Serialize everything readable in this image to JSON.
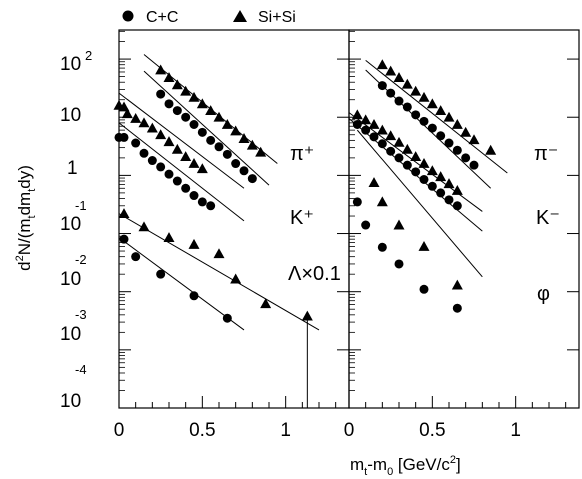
{
  "chart_data": [
    {
      "type": "scatter",
      "panel": "left",
      "xlim": [
        0,
        1.38
      ],
      "ylog": true,
      "ylim": [
        0.0001,
        300
      ],
      "xticks": [
        "0",
        "0.5",
        "1"
      ],
      "ylabel": "d²N/(m_t dm_t dy)",
      "particle_labels": [
        "π⁺",
        "K⁺",
        "Λ×0.1"
      ],
      "series": [
        {
          "name": "C+C",
          "particle": "π⁺",
          "marker": "circle",
          "x": [
            0.0,
            0.03,
            0.1,
            0.15,
            0.2,
            0.25,
            0.3,
            0.35,
            0.4,
            0.45,
            0.5,
            0.55
          ],
          "y": [
            4.5,
            4.5,
            3.6,
            2.4,
            1.8,
            1.4,
            1.05,
            0.8,
            0.6,
            0.45,
            0.35,
            0.3
          ]
        },
        {
          "name": "C+C",
          "particle": "π⁺ (scaled)",
          "marker": "circle",
          "x": [
            0.25,
            0.3,
            0.35,
            0.4,
            0.45,
            0.5,
            0.55,
            0.6,
            0.65,
            0.7,
            0.75,
            0.8
          ],
          "y": [
            25,
            17,
            13,
            10,
            7.5,
            5.5,
            4,
            3.1,
            2.3,
            1.6,
            1.2,
            0.88
          ]
        },
        {
          "name": "Si+Si",
          "particle": "π⁺",
          "marker": "triangle",
          "x": [
            0.0,
            0.03,
            0.05,
            0.1,
            0.15,
            0.2,
            0.25,
            0.3,
            0.35,
            0.4,
            0.45,
            0.5
          ],
          "y": [
            16,
            15,
            11.5,
            9.5,
            8,
            6.5,
            5,
            3.8,
            2.8,
            2.1,
            1.6,
            1.3
          ]
        },
        {
          "name": "Si+Si",
          "particle": "π⁺ (scaled)",
          "marker": "triangle",
          "x": [
            0.25,
            0.3,
            0.35,
            0.4,
            0.45,
            0.5,
            0.55,
            0.6,
            0.65,
            0.7,
            0.75,
            0.8,
            0.85
          ],
          "y": [
            65,
            48,
            36,
            28,
            22,
            17,
            13,
            10,
            7.5,
            5.8,
            4.3,
            3.3,
            2.5
          ]
        },
        {
          "name": "C+C",
          "particle": "K⁺",
          "marker": "circle",
          "x": [
            0.03,
            0.1,
            0.25,
            0.45,
            0.65
          ],
          "y": [
            0.08,
            0.04,
            0.02,
            0.0085,
            0.0035
          ]
        },
        {
          "name": "Si+Si",
          "particle": "K⁺",
          "marker": "triangle",
          "x": [
            0.03,
            0.15,
            0.3,
            0.45,
            0.6,
            0.7,
            0.88
          ],
          "y": [
            0.22,
            0.13,
            0.085,
            0.065,
            0.045,
            0.0165,
            0.0062
          ]
        },
        {
          "name": "Si+Si",
          "particle": "Λ×0.1",
          "marker": "triangle",
          "x": [
            1.13
          ],
          "y": [
            0.0038
          ],
          "y_error_low": [
            0.0001
          ]
        }
      ],
      "fit_lines": [
        {
          "x": [
            0.0,
            0.75
          ],
          "y": [
            8.0,
            0.165
          ]
        },
        {
          "x": [
            0.15,
            0.9
          ],
          "y": [
            62,
            0.68
          ]
        },
        {
          "x": [
            0.0,
            0.75
          ],
          "y": [
            26,
            0.6
          ]
        },
        {
          "x": [
            0.15,
            0.95
          ],
          "y": [
            120,
            1.6
          ]
        },
        {
          "x": [
            0.0,
            0.75
          ],
          "y": [
            0.085,
            0.0022
          ]
        },
        {
          "x": [
            0.0,
            1.2
          ],
          "y": [
            0.22,
            0.0022
          ]
        }
      ]
    },
    {
      "type": "scatter",
      "panel": "right",
      "xlim": [
        0,
        1.38
      ],
      "ylog": true,
      "ylim": [
        0.0001,
        300
      ],
      "xticks": [
        "0",
        "0.5",
        "1"
      ],
      "xlabel": "m_t-m_0 [GeV/c²]",
      "particle_labels": [
        "π⁻",
        "K⁻",
        "φ"
      ],
      "series": [
        {
          "name": "C+C",
          "particle": "π⁻",
          "marker": "circle",
          "x": [
            0.05,
            0.1,
            0.15,
            0.2,
            0.25,
            0.3,
            0.35,
            0.4,
            0.45,
            0.5,
            0.55,
            0.6,
            0.65
          ],
          "y": [
            7.5,
            6,
            4.6,
            3.5,
            2.6,
            2,
            1.5,
            1.15,
            0.85,
            0.65,
            0.5,
            0.38,
            0.3
          ]
        },
        {
          "name": "C+C",
          "particle": "π⁻ (scaled)",
          "marker": "circle",
          "x": [
            0.2,
            0.25,
            0.3,
            0.35,
            0.4,
            0.45,
            0.5,
            0.55,
            0.6,
            0.65,
            0.7,
            0.75
          ],
          "y": [
            35,
            26,
            19,
            15,
            11,
            8.5,
            6.5,
            4.8,
            3.6,
            2.7,
            2.0,
            1.5
          ]
        },
        {
          "name": "C+C",
          "particle": "K⁻",
          "marker": "circle",
          "x": [
            0.05,
            0.1,
            0.2,
            0.3,
            0.45,
            0.65
          ],
          "y": [
            0.35,
            0.14,
            0.058,
            0.03,
            0.011,
            0.0052
          ]
        },
        {
          "name": "Si+Si",
          "particle": "π⁻",
          "marker": "triangle",
          "x": [
            0.05,
            0.1,
            0.15,
            0.2,
            0.25,
            0.3,
            0.35,
            0.4,
            0.45,
            0.5,
            0.55,
            0.6,
            0.65
          ],
          "y": [
            11,
            9,
            7.5,
            6,
            4.8,
            3.7,
            2.8,
            2.1,
            1.6,
            1.2,
            0.95,
            0.72,
            0.55
          ]
        },
        {
          "name": "Si+Si",
          "particle": "π⁻ (scaled)",
          "marker": "triangle",
          "x": [
            0.2,
            0.25,
            0.3,
            0.35,
            0.4,
            0.45,
            0.5,
            0.55,
            0.6,
            0.65,
            0.7,
            0.75,
            0.85
          ],
          "y": [
            80,
            62,
            48,
            37,
            28,
            22,
            17,
            13,
            10,
            7.5,
            5.5,
            4.1,
            2.7
          ]
        },
        {
          "name": "Si+Si",
          "particle": "K⁻",
          "marker": "triangle",
          "x": [
            0.15,
            0.2,
            0.3,
            0.45,
            0.65
          ],
          "y": [
            0.75,
            0.35,
            0.14,
            0.06,
            0.013
          ]
        }
      ],
      "fit_lines": [
        {
          "x": [
            0.05,
            0.8
          ],
          "y": [
            6,
            0.018
          ]
        },
        {
          "x": [
            0.0,
            0.8
          ],
          "y": [
            9.5,
            0.11
          ]
        },
        {
          "x": [
            0.0,
            0.8
          ],
          "y": [
            12,
            0.24
          ]
        },
        {
          "x": [
            0.1,
            0.85
          ],
          "y": [
            65,
            0.6
          ]
        },
        {
          "x": [
            0.1,
            0.95
          ],
          "y": [
            95,
            1.1
          ]
        }
      ]
    }
  ],
  "legend": {
    "position": "top",
    "items": [
      {
        "marker": "circle",
        "label": "C+C"
      },
      {
        "marker": "triangle",
        "label": "Si+Si"
      }
    ]
  },
  "y_axis_ticks": [
    {
      "base": "10",
      "exp": "2"
    },
    {
      "base": "10",
      "exp": ""
    },
    {
      "base": "1",
      "exp": ""
    },
    {
      "base": "10",
      "exp": "-1"
    },
    {
      "base": "10",
      "exp": "-2"
    },
    {
      "base": "10",
      "exp": "-3"
    },
    {
      "base": "10",
      "exp": "-4"
    }
  ]
}
